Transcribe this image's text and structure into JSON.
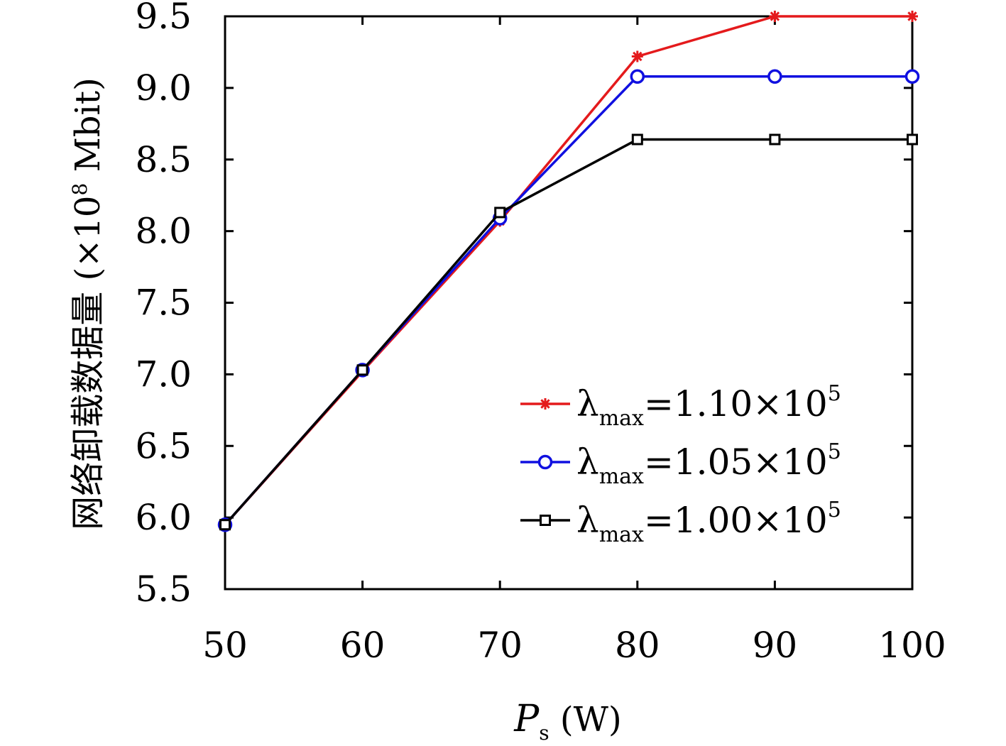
{
  "chart_data": {
    "type": "line",
    "x": [
      50,
      60,
      70,
      80,
      90,
      100
    ],
    "xlabel": "P_s (W)",
    "xlabel_main": "P",
    "xlabel_sub": "s",
    "xlabel_unit": " (W)",
    "ylabel": "网络卸载数据量 (×10⁸ Mbit)",
    "ylabel_main": "网络卸载数据量 (×10",
    "ylabel_sup": "8",
    "ylabel_unit": " Mbit)",
    "xlim": [
      50,
      100
    ],
    "ylim": [
      5.5,
      9.5
    ],
    "xticks": [
      "50",
      "60",
      "70",
      "80",
      "90",
      "100"
    ],
    "yticks": [
      "5.5",
      "6.0",
      "6.5",
      "7.0",
      "7.5",
      "8.0",
      "8.5",
      "9.0",
      "9.5"
    ],
    "grid": false,
    "legend_position": "lower-right",
    "series": [
      {
        "name": "λmax=1.10×10⁵",
        "lambda": "λ",
        "sub": "max",
        "value": "=1.10×10",
        "sup": "5",
        "color": "#e41a1c",
        "marker": "asterisk",
        "values": [
          5.95,
          7.02,
          8.07,
          9.22,
          9.5,
          9.5
        ]
      },
      {
        "name": "λmax=1.05×10⁵",
        "lambda": "λ",
        "sub": "max",
        "value": "=1.05×10",
        "sup": "5",
        "color": "#1010e0",
        "marker": "circle",
        "values": [
          5.95,
          7.03,
          8.09,
          9.08,
          9.08,
          9.08
        ]
      },
      {
        "name": "λmax=1.00×10⁵",
        "lambda": "λ",
        "sub": "max",
        "value": "=1.00×10",
        "sup": "5",
        "color": "#000000",
        "marker": "square",
        "values": [
          5.95,
          7.03,
          8.13,
          8.64,
          8.64,
          8.64
        ]
      }
    ]
  }
}
